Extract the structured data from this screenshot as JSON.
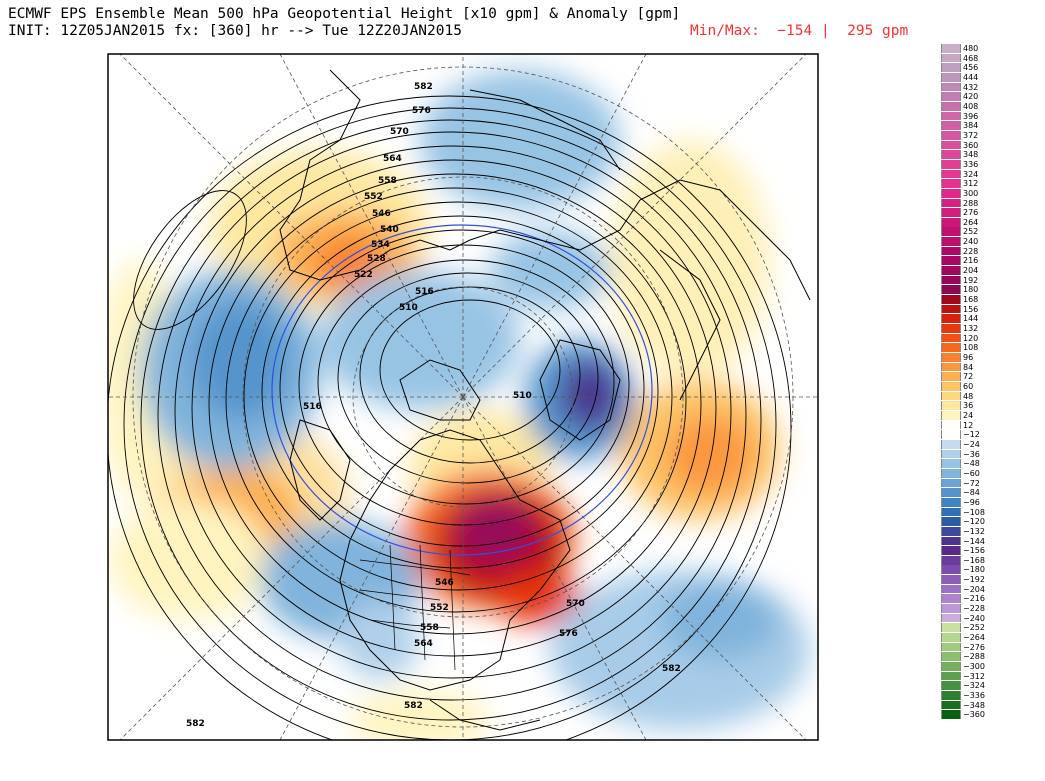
{
  "header": {
    "line1": "ECMWF EPS Ensemble Mean 500 hPa Geopotential Height [x10 gpm] & Anomaly [gpm]",
    "line2": "INIT: 12Z05JAN2015 fx: [360] hr --> Tue 12Z20JAN2015",
    "minmax": "Min/Max:  −154 |  295 gpm"
  },
  "contour_labels": [
    "582",
    "576",
    "570",
    "564",
    "558",
    "552",
    "546",
    "540",
    "534",
    "528",
    "522",
    "516",
    "510",
    "516",
    "510",
    "546",
    "552",
    "558",
    "564",
    "570",
    "576",
    "582",
    "582",
    "582"
  ],
  "colorbar": {
    "levels": [
      "480",
      "468",
      "456",
      "444",
      "432",
      "420",
      "408",
      "396",
      "384",
      "372",
      "360",
      "348",
      "336",
      "324",
      "312",
      "300",
      "288",
      "276",
      "264",
      "252",
      "240",
      "228",
      "216",
      "204",
      "192",
      "180",
      "168",
      "156",
      "144",
      "132",
      "120",
      "108",
      "96",
      "84",
      "72",
      "60",
      "48",
      "36",
      "24",
      "12",
      "−12",
      "−24",
      "−36",
      "−48",
      "−60",
      "−72",
      "−84",
      "−96",
      "−108",
      "−120",
      "−132",
      "−144",
      "−156",
      "−168",
      "−180",
      "−192",
      "−204",
      "−216",
      "−228",
      "−240",
      "−252",
      "−264",
      "−276",
      "−288",
      "−300",
      "−312",
      "−324",
      "−336",
      "−348",
      "−360"
    ],
    "colors": [
      "#c8b0c8",
      "#c4a8c4",
      "#c0a0c0",
      "#bc98bc",
      "#c088b8",
      "#c47cb4",
      "#c870ac",
      "#cc68a8",
      "#d060a4",
      "#d458a0",
      "#d8509c",
      "#dc4898",
      "#e04094",
      "#e43890",
      "#e8308c",
      "#e02888",
      "#d82080",
      "#d0207c",
      "#c81878",
      "#c01070",
      "#b8106c",
      "#b00868",
      "#a80864",
      "#a00860",
      "#96085a",
      "#8c0854",
      "#a00820",
      "#c01010",
      "#d82010",
      "#e83810",
      "#f05018",
      "#f46820",
      "#f88030",
      "#fa9840",
      "#fcb050",
      "#fdc468",
      "#fed880",
      "#fee8a0",
      "#fff4c0",
      "#ffffff",
      "#ffffff",
      "#c6dcee",
      "#b0d0ea",
      "#98c4e4",
      "#80b4dc",
      "#6aa4d4",
      "#5494cc",
      "#3e84c4",
      "#3070b4",
      "#2c5ca4",
      "#3c4898",
      "#4c3490",
      "#5c2888",
      "#6c3a9c",
      "#7c4caa",
      "#8c5eb8",
      "#9c70c4",
      "#ac84ce",
      "#bc98d8",
      "#ccacdf",
      "#c8e0a0",
      "#b4d890",
      "#a0cc80",
      "#8cc070",
      "#74b060",
      "#5ca050",
      "#449040",
      "#2c8030",
      "#187020",
      "#086010"
    ]
  },
  "palette": {
    "background": "#ffffff",
    "contour": "#000000",
    "minmax_text": "#ff3030"
  }
}
